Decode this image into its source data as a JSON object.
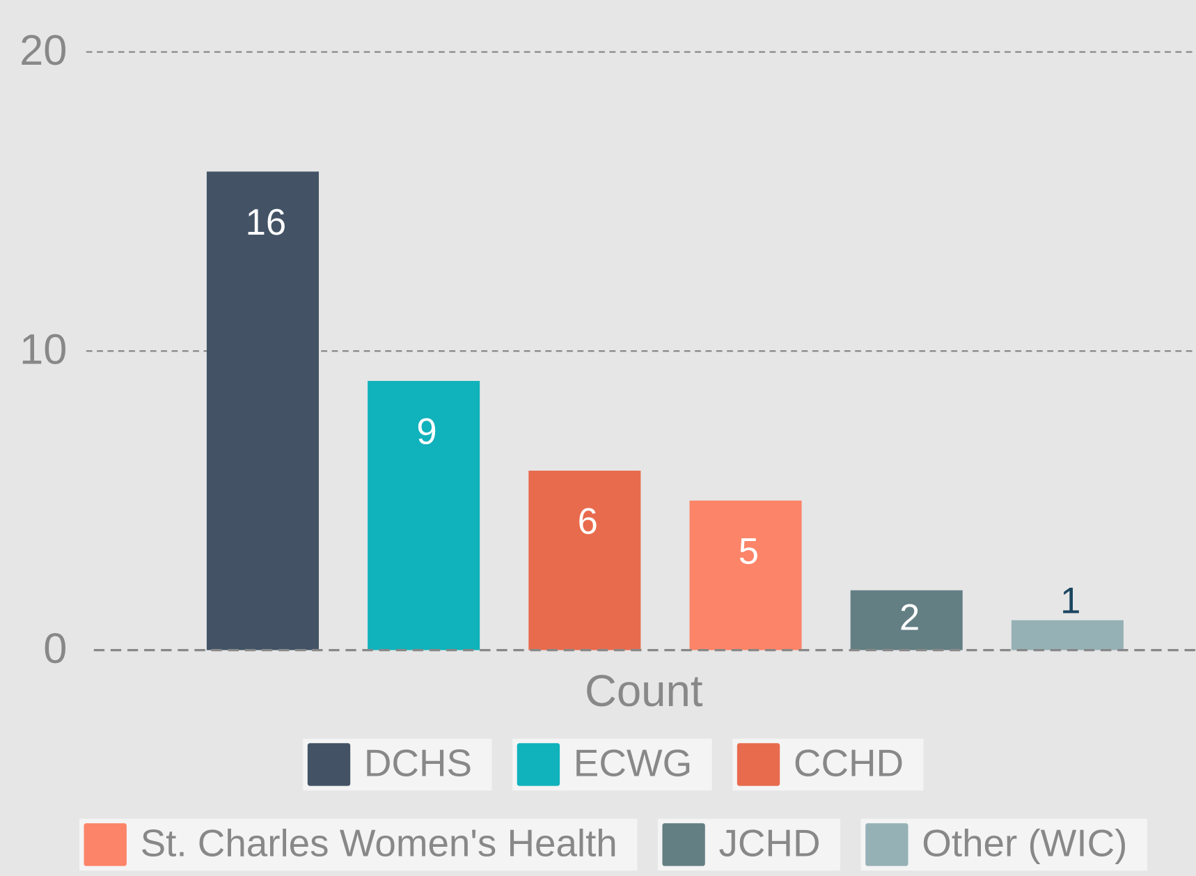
{
  "chart_data": {
    "type": "bar",
    "categories": [
      "Count"
    ],
    "series": [
      {
        "name": "DCHS",
        "color": "#435365",
        "values": [
          16
        ]
      },
      {
        "name": "ECWG",
        "color": "#10b2bb",
        "values": [
          9
        ]
      },
      {
        "name": "CCHD",
        "color": "#e86b4d",
        "values": [
          6
        ]
      },
      {
        "name": "St. Charles Women's Health",
        "color": "#fc8468",
        "values": [
          5
        ]
      },
      {
        "name": "JCHD",
        "color": "#647f84",
        "values": [
          2
        ]
      },
      {
        "name": "Other (WIC)",
        "color": "#96b1b6",
        "values": [
          1
        ]
      }
    ],
    "ylim": [
      0,
      20
    ],
    "yticks": [
      0,
      10,
      20
    ],
    "grid": true,
    "legend": "bottom"
  }
}
